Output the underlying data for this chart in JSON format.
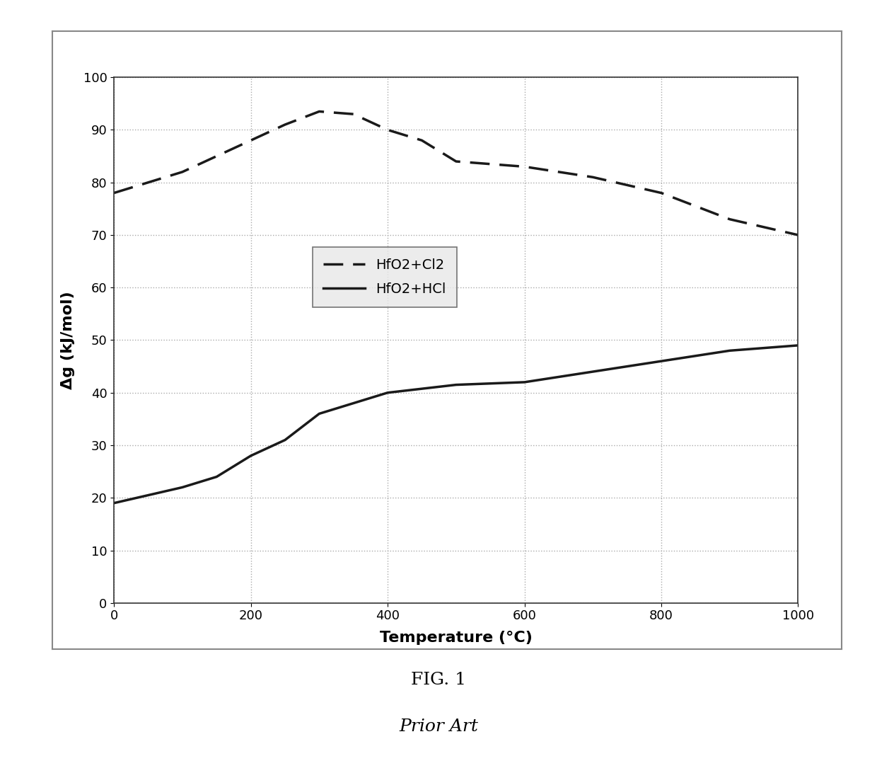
{
  "hfo2_cl2_x": [
    0,
    100,
    200,
    250,
    300,
    350,
    400,
    450,
    500,
    600,
    700,
    800,
    900,
    1000
  ],
  "hfo2_cl2_y": [
    78,
    82,
    88,
    91,
    93.5,
    93,
    90,
    88,
    84,
    83,
    81,
    78,
    73,
    70
  ],
  "hfo2_hcl_x": [
    0,
    50,
    100,
    150,
    200,
    250,
    300,
    350,
    400,
    500,
    600,
    700,
    800,
    900,
    1000
  ],
  "hfo2_hcl_y": [
    19,
    20.5,
    22,
    24,
    28,
    31,
    36,
    38,
    40,
    41.5,
    42,
    44,
    46,
    48,
    49
  ],
  "xlabel": "Temperature (°C)",
  "ylabel": "Δg (kJ/mol)",
  "xlim": [
    0,
    1000
  ],
  "ylim": [
    0,
    100
  ],
  "xticks": [
    0,
    200,
    400,
    600,
    800,
    1000
  ],
  "yticks": [
    0,
    10,
    20,
    30,
    40,
    50,
    60,
    70,
    80,
    90,
    100
  ],
  "legend_label_cl2": "HfO2+Cl2",
  "legend_label_hcl": "HfO2+HCl",
  "fig_caption": "FIG. 1",
  "fig_subcaption": "Prior Art",
  "line_color": "#1a1a1a",
  "background_color": "#ffffff",
  "grid_color": "#aaaaaa",
  "legend_face_color": "#e8e8e8",
  "legend_edge_color": "#555555",
  "outer_box_color": "#aaaaaa"
}
